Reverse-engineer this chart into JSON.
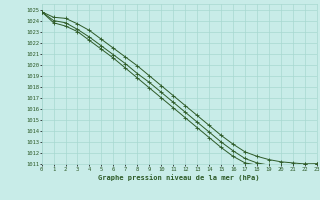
{
  "title": "Graphe pression niveau de la mer (hPa)",
  "xlim": [
    0,
    23
  ],
  "ylim": [
    1011,
    1025.5
  ],
  "xticks": [
    0,
    1,
    2,
    3,
    4,
    5,
    6,
    7,
    8,
    9,
    10,
    11,
    12,
    13,
    14,
    15,
    16,
    17,
    18,
    19,
    20,
    21,
    22,
    23
  ],
  "yticks": [
    1011,
    1012,
    1013,
    1014,
    1015,
    1016,
    1017,
    1018,
    1019,
    1020,
    1021,
    1022,
    1023,
    1024,
    1025
  ],
  "bg_color": "#c8ece8",
  "grid_color": "#a8d8d0",
  "line_color": "#2d5a27",
  "line1_x": [
    0,
    1,
    2,
    3,
    4,
    5,
    6,
    7,
    8,
    9,
    10,
    11,
    12,
    13,
    14,
    15,
    16,
    17,
    18,
    19,
    20,
    21,
    22,
    23
  ],
  "line1_y": [
    1024.8,
    1024.3,
    1024.2,
    1023.7,
    1023.1,
    1022.3,
    1021.5,
    1020.7,
    1019.9,
    1019.0,
    1018.1,
    1017.2,
    1016.3,
    1015.4,
    1014.5,
    1013.6,
    1012.8,
    1012.1,
    1011.7,
    1011.4,
    1011.2,
    1011.1,
    1011.0,
    1011.0
  ],
  "line2_x": [
    0,
    1,
    2,
    3,
    4,
    5,
    6,
    7,
    8,
    9,
    10,
    11,
    12,
    13,
    14,
    15,
    16,
    17,
    18,
    19,
    20,
    21,
    22,
    23
  ],
  "line2_y": [
    1024.8,
    1024.0,
    1023.8,
    1023.2,
    1022.5,
    1021.7,
    1020.9,
    1020.1,
    1019.2,
    1018.4,
    1017.5,
    1016.6,
    1015.7,
    1014.8,
    1013.9,
    1013.0,
    1012.2,
    1011.5,
    1011.1,
    1010.9,
    1010.9,
    1010.9,
    1010.9,
    1011.0
  ],
  "line3_x": [
    0,
    1,
    2,
    3,
    4,
    5,
    6,
    7,
    8,
    9,
    10,
    11,
    12,
    13,
    14,
    15,
    16,
    17,
    18,
    19,
    20,
    21,
    22,
    23
  ],
  "line3_y": [
    1024.8,
    1023.8,
    1023.5,
    1023.0,
    1022.2,
    1021.4,
    1020.6,
    1019.7,
    1018.8,
    1017.9,
    1017.0,
    1016.1,
    1015.2,
    1014.3,
    1013.4,
    1012.5,
    1011.7,
    1011.1,
    1010.9,
    1010.8,
    1010.8,
    1010.9,
    1011.0,
    1011.0
  ]
}
